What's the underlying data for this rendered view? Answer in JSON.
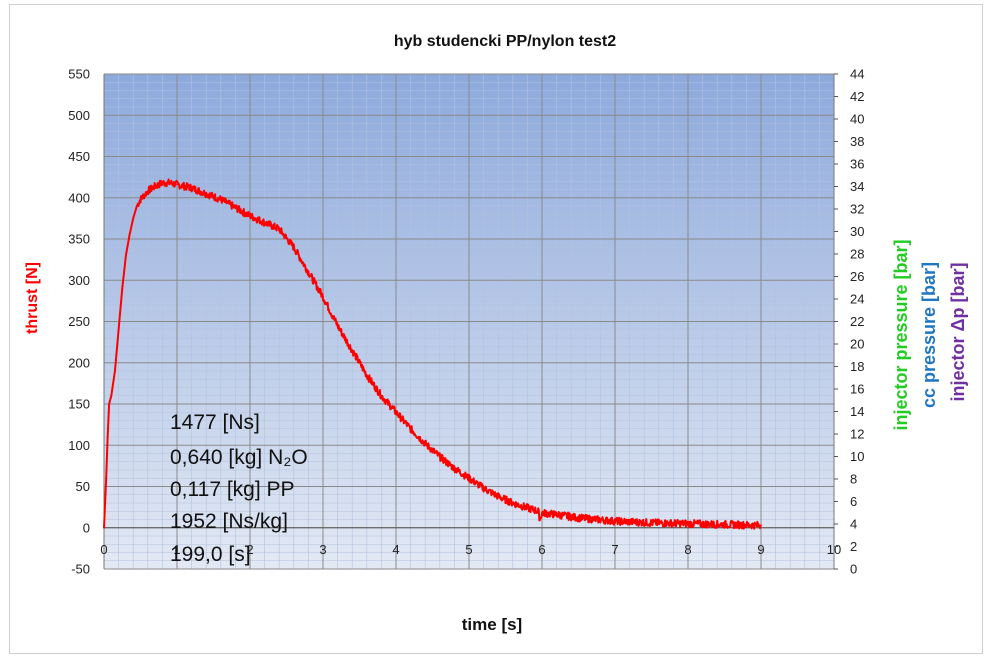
{
  "chart_data": {
    "type": "line",
    "title": "hyb studencki PP/nylon  test2",
    "xlabel": "time [s]",
    "ylabel": "thrust [N]",
    "y2labels": [
      {
        "text": "injector pressure [bar]",
        "color": "#22cc22"
      },
      {
        "text": "cc pressure [bar]",
        "color": "#1f77c4"
      },
      {
        "text": "injector Δp [bar]",
        "color": "#7030a0"
      }
    ],
    "xlim": [
      0,
      10
    ],
    "ylim": [
      -50,
      550
    ],
    "y2lim": [
      0,
      44
    ],
    "x_ticks": [
      "0",
      "1",
      "2",
      "3",
      "4",
      "5",
      "6",
      "7",
      "8",
      "9",
      "10"
    ],
    "y_ticks": [
      "-50",
      "0",
      "50",
      "100",
      "150",
      "200",
      "250",
      "300",
      "350",
      "400",
      "450",
      "500",
      "550"
    ],
    "y2_ticks": [
      "0",
      "2",
      "4",
      "6",
      "8",
      "10",
      "12",
      "14",
      "16",
      "18",
      "20",
      "22",
      "24",
      "26",
      "28",
      "30",
      "32",
      "34",
      "36",
      "38",
      "40",
      "42",
      "44"
    ],
    "grid": true,
    "series": [
      {
        "name": "thrust [N]",
        "color": "#ff0000",
        "x": [
          0,
          0.03,
          0.05,
          0.07,
          0.1,
          0.15,
          0.2,
          0.25,
          0.3,
          0.35,
          0.4,
          0.45,
          0.5,
          0.6,
          0.7,
          0.8,
          0.9,
          1.0,
          1.2,
          1.4,
          1.6,
          1.8,
          2.0,
          2.2,
          2.4,
          2.6,
          2.8,
          3.0,
          3.2,
          3.4,
          3.6,
          3.8,
          4.0,
          4.2,
          4.4,
          4.6,
          4.8,
          5.0,
          5.2,
          5.4,
          5.6,
          5.8,
          5.95,
          5.97,
          6.0,
          6.2,
          6.5,
          7.0,
          7.5,
          8.0,
          8.5,
          9.0
        ],
        "y": [
          0,
          60,
          110,
          150,
          160,
          190,
          240,
          290,
          330,
          355,
          375,
          390,
          398,
          408,
          414,
          418,
          418,
          416,
          412,
          405,
          398,
          388,
          378,
          370,
          362,
          340,
          310,
          280,
          245,
          215,
          185,
          160,
          140,
          120,
          102,
          86,
          72,
          60,
          48,
          38,
          30,
          24,
          20,
          10,
          18,
          16,
          12,
          8,
          6,
          5,
          4,
          3
        ]
      }
    ],
    "annotations": [
      "1477  [Ns]",
      "0,640 [kg] N₂O",
      "0,117 [kg] PP",
      "1952  [Ns/kg]",
      "199,0 [s]"
    ]
  }
}
